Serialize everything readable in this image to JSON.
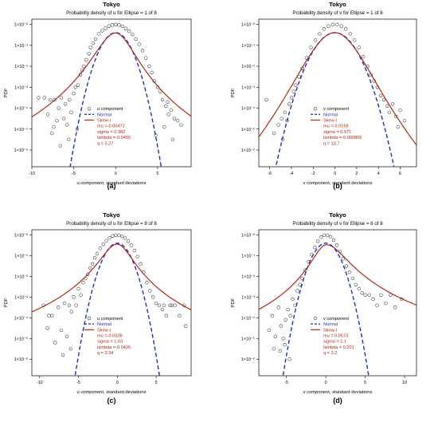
{
  "colors": {
    "points": "#333333",
    "normal": "#1f2fbf",
    "skewt": "#b22a16",
    "frame": "#000000"
  },
  "chart_data": [
    {
      "type": "scatter",
      "panel_label": "(a)",
      "title": "Tokyo",
      "subtitle": "Probability density of u for Ellipse = 1 of 8",
      "xlabel": "u component, standard deviations",
      "ylabel": "PDF",
      "xlim": [
        -10,
        9
      ],
      "xticks": [
        -10,
        -5,
        0,
        5
      ],
      "ylim_log10": [
        -6.8,
        0.25
      ],
      "yticks": [
        -6,
        -5,
        -4,
        -3,
        -2,
        -1,
        0
      ],
      "ytick_labels": [
        "1×10⁻⁶",
        "1×10⁻⁵",
        "1×10⁻⁴",
        "1×10⁻³",
        "1×10⁻²",
        "1×10⁻¹",
        "1×10⁻⁰"
      ],
      "grid": false,
      "legend_position": "bottom-center",
      "legend": {
        "points_label": "u component",
        "normal_label": "Normal",
        "skewt_label": "Skew-t",
        "params": [
          "mu =-0.00472",
          "sigma = 0.982",
          "lambda =-0.0455",
          "q = 5.27"
        ]
      },
      "series": [
        {
          "name": "u component",
          "kind": "points",
          "x": [
            -9.2,
            -8.5,
            -8.1,
            -7.8,
            -7.6,
            -7.3,
            -7.0,
            -6.8,
            -6.5,
            -6.2,
            -6.0,
            -5.8,
            -5.5,
            -5.3,
            -5.0,
            -4.8,
            -4.5,
            -4.2,
            -4.0,
            -3.8,
            -3.5,
            -3.2,
            -3.0,
            -2.7,
            -2.4,
            -2.0,
            -1.6,
            -1.2,
            -0.8,
            -0.4,
            0.0,
            0.4,
            0.8,
            1.2,
            1.6,
            2.0,
            2.4,
            2.8,
            3.2,
            3.6,
            4.0,
            4.3,
            4.6,
            5.0,
            5.3,
            5.6,
            6.0,
            6.3,
            6.6,
            7.0,
            7.4,
            7.8,
            -6.6,
            -5.6,
            -4.6,
            4.8,
            5.8,
            6.8,
            -7.4,
            6.2
          ],
          "y": [
            -3.5,
            -3.5,
            -4.3,
            -3.6,
            -5.2,
            -3.6,
            -4.6,
            -4.0,
            -3.5,
            -4.5,
            -3.8,
            -4.8,
            -3.6,
            -4.2,
            -3.3,
            -3.0,
            -2.9,
            -2.4,
            -2.2,
            -2.0,
            -1.7,
            -1.4,
            -1.1,
            -0.9,
            -0.7,
            -0.45,
            -0.3,
            -0.18,
            -0.08,
            -0.03,
            -0.01,
            -0.03,
            -0.09,
            -0.2,
            -0.32,
            -0.48,
            -0.7,
            -0.95,
            -1.25,
            -1.6,
            -2.0,
            -2.3,
            -2.7,
            -3.0,
            -3.2,
            -3.6,
            -3.9,
            -4.3,
            -4.1,
            -4.5,
            -4.6,
            -4.8,
            -5.8,
            -5.5,
            -5.0,
            -5.3,
            -4.9,
            -5.5,
            -4.9,
            -3.7
          ]
        },
        {
          "name": "Normal",
          "kind": "normal",
          "mu": 0,
          "sigma": 1
        },
        {
          "name": "Skew-t",
          "kind": "skewt",
          "mu": -0.00472,
          "sigma": 0.982,
          "lambda": -0.0455,
          "q": 5.27
        }
      ]
    },
    {
      "type": "scatter",
      "panel_label": "(b)",
      "title": "Tokyo",
      "subtitle": "Probability density of v for Ellipse = 1 of 8",
      "xlabel": "v component, standard deviations",
      "ylabel": "PDF",
      "xlim": [
        -7,
        7.5
      ],
      "xticks": [
        -6,
        -4,
        -2,
        0,
        2,
        4,
        6
      ],
      "ylim_log10": [
        -6.8,
        0.25
      ],
      "yticks": [
        -6,
        -5,
        -4,
        -3,
        -2,
        -1,
        0
      ],
      "ytick_labels": [
        "1×10⁻⁶",
        "1×10⁻⁵",
        "1×10⁻⁴",
        "1×10⁻³",
        "1×10⁻²",
        "1×10⁻¹",
        "1×10⁻⁰"
      ],
      "grid": false,
      "legend_position": "bottom-center",
      "legend": {
        "points_label": "v component",
        "normal_label": "Normal",
        "skewt_label": "Skew-t",
        "params": [
          "mu =-0.0168",
          "sigma = 0.971",
          "lambda =-0.000865",
          "q = 13.7"
        ]
      },
      "series": [
        {
          "name": "v component",
          "kind": "points",
          "x": [
            -6.3,
            -5.2,
            -4.9,
            -4.6,
            -4.4,
            -4.2,
            -4.0,
            -3.8,
            -3.6,
            -3.3,
            -3.0,
            -2.6,
            -2.2,
            -1.8,
            -1.4,
            -1.0,
            -0.6,
            -0.2,
            0.2,
            0.6,
            1.0,
            1.4,
            1.8,
            2.2,
            2.6,
            3.0,
            3.3,
            3.6,
            3.9,
            4.2,
            4.5,
            4.8,
            5.0,
            5.3,
            5.6,
            6.0,
            6.4,
            -5.6,
            5.8,
            -4.8
          ],
          "y": [
            -3.6,
            -4.8,
            -4.5,
            -4.2,
            -4.6,
            -3.8,
            -3.5,
            -3.2,
            -2.9,
            -2.5,
            -2.1,
            -1.6,
            -1.1,
            -0.75,
            -0.45,
            -0.22,
            -0.08,
            -0.01,
            -0.01,
            -0.08,
            -0.22,
            -0.45,
            -0.75,
            -1.1,
            -1.55,
            -2.0,
            -2.4,
            -2.7,
            -3.0,
            -3.4,
            -3.6,
            -3.9,
            -4.2,
            -3.8,
            -4.4,
            -4.1,
            -4.6,
            -5.2,
            -4.9,
            -5.5
          ]
        },
        {
          "name": "Normal",
          "kind": "normal",
          "mu": 0,
          "sigma": 1
        },
        {
          "name": "Skew-t",
          "kind": "skewt",
          "mu": -0.0168,
          "sigma": 0.971,
          "lambda": -0.000865,
          "q": 13.7
        }
      ]
    },
    {
      "type": "scatter",
      "panel_label": "(c)",
      "title": "Tokyo",
      "subtitle": "Probability density of u for Ellipse = 8 of 8",
      "xlabel": "u component, standard deviations",
      "ylabel": "PDF",
      "xlim": [
        -11,
        9.5
      ],
      "xticks": [
        -10,
        -5,
        0,
        5
      ],
      "ylim_log10": [
        -6.8,
        0.25
      ],
      "yticks": [
        -6,
        -5,
        -4,
        -3,
        -2,
        -1,
        0
      ],
      "ytick_labels": [
        "1×10⁻⁶",
        "1×10⁻⁵",
        "1×10⁻⁴",
        "1×10⁻³",
        "1×10⁻²",
        "1×10⁻¹",
        "1×10⁻⁰"
      ],
      "grid": false,
      "legend_position": "bottom-center",
      "legend": {
        "points_label": "u component",
        "normal_label": "Normal",
        "skewt_label": "Skew-t",
        "params": [
          "mu =-0.0328",
          "sigma = 1.03",
          "lambda =-0.0426",
          "q = 3.34"
        ]
      },
      "series": [
        {
          "name": "u component",
          "kind": "points",
          "x": [
            -9.5,
            -9.0,
            -8.4,
            -8.0,
            -7.6,
            -7.2,
            -6.8,
            -6.5,
            -6.2,
            -5.9,
            -5.6,
            -5.3,
            -5.0,
            -4.7,
            -4.4,
            -4.1,
            -3.8,
            -3.5,
            -3.2,
            -2.9,
            -2.6,
            -2.2,
            -1.8,
            -1.4,
            -1.0,
            -0.6,
            -0.2,
            0.2,
            0.6,
            1.0,
            1.4,
            1.8,
            2.2,
            2.6,
            3.0,
            3.4,
            3.8,
            4.2,
            4.6,
            5.0,
            5.4,
            5.8,
            6.3,
            6.8,
            7.4,
            8.0,
            8.6,
            -7.0,
            -6.0,
            6.0,
            7.0,
            -8.8,
            8.8
          ],
          "y": [
            -3.4,
            -4.5,
            -3.9,
            -5.2,
            -3.5,
            -4.6,
            -3.3,
            -4.9,
            -3.4,
            -3.7,
            -3.0,
            -3.4,
            -2.6,
            -2.9,
            -2.3,
            -2.1,
            -1.9,
            -1.6,
            -1.4,
            -1.1,
            -0.9,
            -0.65,
            -0.45,
            -0.28,
            -0.14,
            -0.05,
            -0.01,
            -0.01,
            -0.06,
            -0.15,
            -0.3,
            -0.5,
            -0.75,
            -1.05,
            -1.4,
            -1.8,
            -2.3,
            -2.7,
            -3.0,
            -3.3,
            -3.4,
            -3.6,
            -3.9,
            -3.4,
            -3.4,
            -3.9,
            -3.4,
            -5.8,
            -5.5,
            -3.4,
            -3.4,
            -3.9,
            -4.4
          ]
        },
        {
          "name": "Normal",
          "kind": "normal",
          "mu": 0,
          "sigma": 1
        },
        {
          "name": "Skew-t",
          "kind": "skewt",
          "mu": -0.0328,
          "sigma": 1.03,
          "lambda": -0.0426,
          "q": 3.34
        }
      ]
    },
    {
      "type": "scatter",
      "panel_label": "(d)",
      "title": "Tokyo",
      "subtitle": "Probability density of v for Ellipse = 8 of 8",
      "xlabel": "v component, standard deviations",
      "ylabel": "PDF",
      "xlim": [
        -8.5,
        11.5
      ],
      "xticks": [
        -5,
        0,
        5,
        10
      ],
      "ylim_log10": [
        -6.8,
        0.25
      ],
      "yticks": [
        -6,
        -5,
        -4,
        -3,
        -2,
        -1,
        0
      ],
      "ytick_labels": [
        "1×10⁻⁶",
        "1×10⁻⁵",
        "1×10⁻⁴",
        "1×10⁻³",
        "1×10⁻²",
        "1×10⁻¹",
        "1×10⁻⁰"
      ],
      "grid": false,
      "legend_position": "bottom-center",
      "legend": {
        "points_label": "v component",
        "normal_label": "Normal",
        "skewt_label": "Skew-t",
        "params": [
          "mu = 0.0573",
          "sigma = 1.1",
          "lambda = 0.201",
          "q = 3.2"
        ]
      },
      "series": [
        {
          "name": "v component",
          "kind": "points",
          "x": [
            -7.2,
            -6.8,
            -6.4,
            -6.0,
            -5.7,
            -5.4,
            -5.1,
            -4.8,
            -4.5,
            -4.2,
            -3.9,
            -3.6,
            -3.3,
            -3.0,
            -2.6,
            -2.2,
            -1.8,
            -1.4,
            -1.0,
            -0.6,
            -0.2,
            0.2,
            0.6,
            1.0,
            1.4,
            1.8,
            2.2,
            2.6,
            3.0,
            3.4,
            3.8,
            4.2,
            4.6,
            5.0,
            5.5,
            6.0,
            6.5,
            7.0,
            7.6,
            8.2,
            8.8,
            9.6,
            -5.8,
            -5.2,
            -4.6,
            -6.6
          ],
          "y": [
            -4.6,
            -3.9,
            -4.9,
            -3.5,
            -4.4,
            -5.0,
            -4.1,
            -3.6,
            -3.9,
            -3.1,
            -3.4,
            -2.7,
            -2.4,
            -2.1,
            -1.7,
            -1.3,
            -0.95,
            -0.6,
            -0.3,
            -0.1,
            -0.01,
            -0.01,
            -0.09,
            -0.25,
            -0.5,
            -0.8,
            -1.15,
            -1.5,
            -1.8,
            -2.1,
            -2.4,
            -2.6,
            -2.8,
            -2.9,
            -2.9,
            -3.1,
            -3.4,
            -2.9,
            -3.3,
            -2.9,
            -3.5,
            -3.1,
            -5.6,
            -5.3,
            -6.0,
            -5.5
          ]
        },
        {
          "name": "Normal",
          "kind": "normal",
          "mu": 0,
          "sigma": 1
        },
        {
          "name": "Skew-t",
          "kind": "skewt",
          "mu": 0.0573,
          "sigma": 1.1,
          "lambda": 0.201,
          "q": 3.2
        }
      ]
    }
  ]
}
